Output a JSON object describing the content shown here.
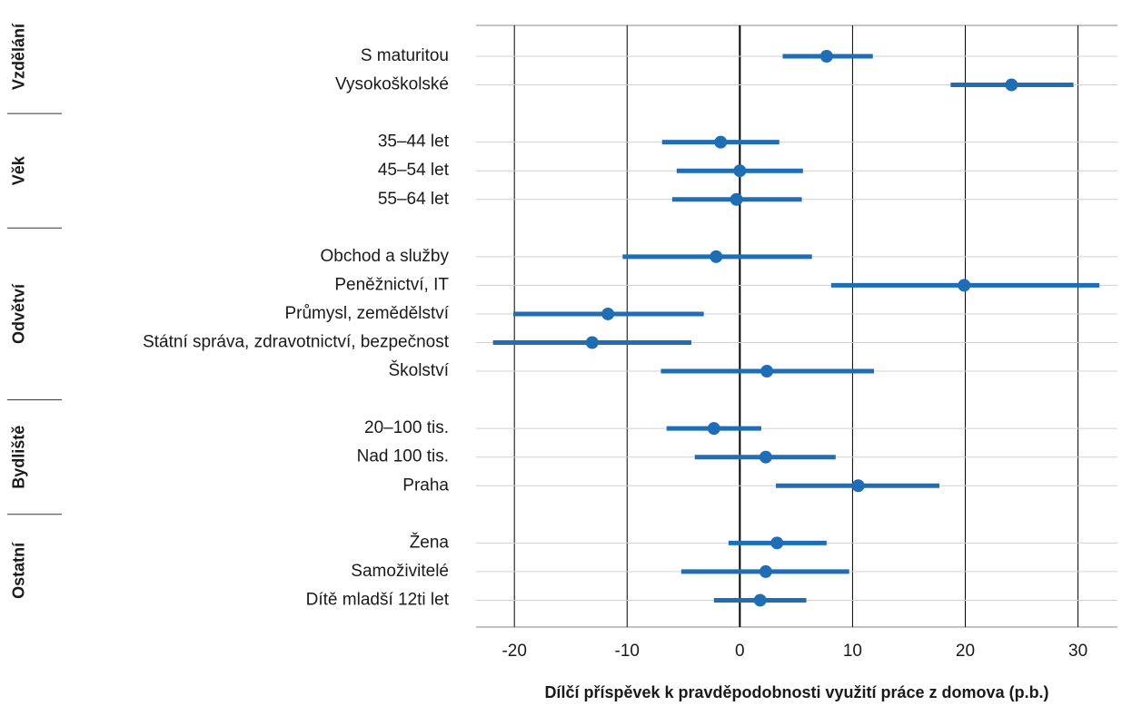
{
  "chart_data": {
    "type": "forest",
    "x_label": "Dílčí příspěvek k pravděpodobnosti využití práce z domova (p.b.)",
    "xlim": [
      -23.4,
      33.5
    ],
    "xticks": [
      -20,
      -10,
      0,
      10,
      20,
      30
    ],
    "grid": true,
    "color": "#1f6db5",
    "groups": [
      {
        "name": "Vzdělání",
        "categories": [
          "S maturitou",
          "Vysokoškolské"
        ],
        "values": [
          7.7,
          24.1
        ],
        "lower": [
          3.8,
          18.7
        ],
        "upper": [
          11.8,
          29.6
        ]
      },
      {
        "name": "Věk",
        "categories": [
          "35–44 let",
          "45–54 let",
          "55–64 let"
        ],
        "values": [
          -1.7,
          0,
          -0.3
        ],
        "lower": [
          -6.9,
          -5.6,
          -6.0
        ],
        "upper": [
          3.5,
          5.6,
          5.5
        ]
      },
      {
        "name": "Odvětví",
        "categories": [
          "Obchod a služby",
          "Peněžnictví, IT",
          "Průmysl, zemědělství",
          "Státní správa, zdravotnictví, bezpečnost",
          "Školství"
        ],
        "values": [
          -2.1,
          19.9,
          -11.7,
          -13.1,
          2.4
        ],
        "lower": [
          -10.4,
          8.1,
          -20.1,
          -21.9,
          -7.0
        ],
        "upper": [
          6.4,
          31.9,
          -3.2,
          -4.3,
          11.9
        ]
      },
      {
        "name": "Bydliště",
        "categories": [
          "20–100 tis.",
          "Nad 100 tis.",
          "Praha"
        ],
        "values": [
          -2.3,
          2.3,
          10.5
        ],
        "lower": [
          -6.5,
          -4.0,
          3.2
        ],
        "upper": [
          1.9,
          8.5,
          17.7
        ]
      },
      {
        "name": "Ostatní",
        "categories": [
          "Žena",
          "Samoživitelé",
          "Dítě mladší 12ti let"
        ],
        "values": [
          3.3,
          2.3,
          1.8
        ],
        "lower": [
          -1.0,
          -5.2,
          -2.3
        ],
        "upper": [
          7.7,
          9.7,
          5.9
        ]
      }
    ]
  }
}
